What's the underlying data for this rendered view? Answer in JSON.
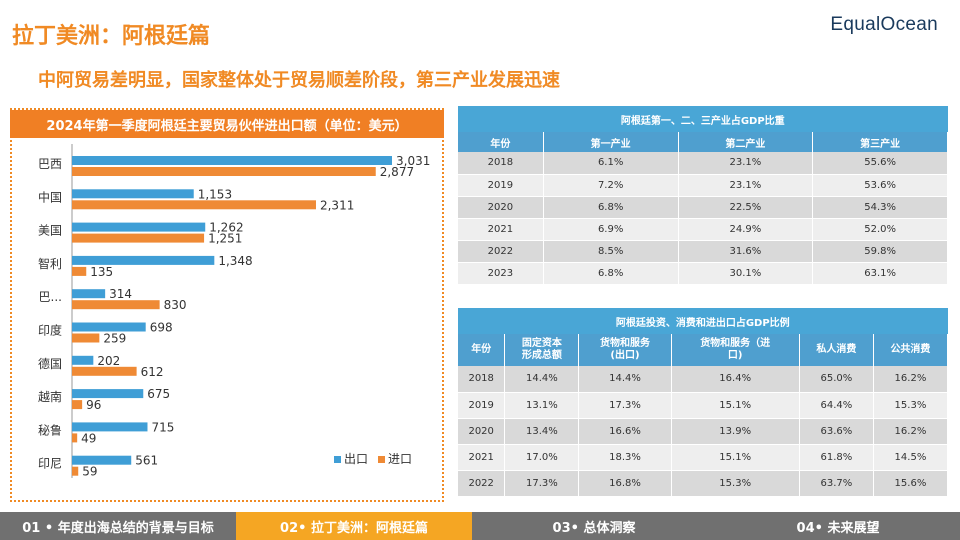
{
  "header": {
    "title": "拉丁美洲：阿根廷篇",
    "subtitle": "中阿贸易差明显，国家整体处于贸易顺差阶段，第三产业发展迅速",
    "logo": "EqualOcean"
  },
  "colors": {
    "export": "#3f9ed6",
    "import": "#ef8a35",
    "accent": "#f08a24"
  },
  "chart_data": {
    "type": "bar",
    "orientation": "horizontal",
    "title": "2024年第一季度阿根廷主要贸易伙伴进出口额（单位：美元）",
    "categories": [
      "巴西",
      "中国",
      "美国",
      "智利",
      "巴...",
      "印度",
      "德国",
      "越南",
      "秘鲁",
      "印尼"
    ],
    "series": [
      {
        "name": "出口",
        "values": [
          3031,
          1153,
          1262,
          1348,
          314,
          698,
          202,
          675,
          715,
          561
        ]
      },
      {
        "name": "进口",
        "values": [
          2877,
          2311,
          1251,
          135,
          830,
          259,
          612,
          96,
          49,
          59
        ]
      }
    ],
    "legend_position": "bottom-right"
  },
  "table1": {
    "caption": "阿根廷第一、二、三产业占GDP比重",
    "headers": [
      "年份",
      "第一产业",
      "第二产业",
      "第三产业"
    ],
    "rows": [
      [
        "2018",
        "6.1%",
        "23.1%",
        "55.6%"
      ],
      [
        "2019",
        "7.2%",
        "23.1%",
        "53.6%"
      ],
      [
        "2020",
        "6.8%",
        "22.5%",
        "54.3%"
      ],
      [
        "2021",
        "6.9%",
        "24.9%",
        "52.0%"
      ],
      [
        "2022",
        "8.5%",
        "31.6%",
        "59.8%"
      ],
      [
        "2023",
        "6.8%",
        "30.1%",
        "63.1%"
      ]
    ]
  },
  "table2": {
    "caption": "阿根廷投资、消费和进出口占GDP比例",
    "headers": [
      "年份",
      "固定资本\n形成总额",
      "货物和服务\n(出口)",
      "货物和服务（进\n口)",
      "私人消费",
      "公共消费"
    ],
    "rows": [
      [
        "2018",
        "14.4%",
        "14.4%",
        "16.4%",
        "65.0%",
        "16.2%"
      ],
      [
        "2019",
        "13.1%",
        "17.3%",
        "15.1%",
        "64.4%",
        "15.3%"
      ],
      [
        "2020",
        "13.4%",
        "16.6%",
        "13.9%",
        "63.6%",
        "16.2%"
      ],
      [
        "2021",
        "17.0%",
        "18.3%",
        "15.1%",
        "61.8%",
        "14.5%"
      ],
      [
        "2022",
        "17.3%",
        "16.8%",
        "15.3%",
        "63.7%",
        "15.6%"
      ]
    ]
  },
  "footer": {
    "tabs": [
      "01 • 年度出海总结的背景与目标",
      "02• 拉丁美洲：阿根廷篇",
      "03• 总体洞察",
      "04• 未来展望"
    ]
  }
}
